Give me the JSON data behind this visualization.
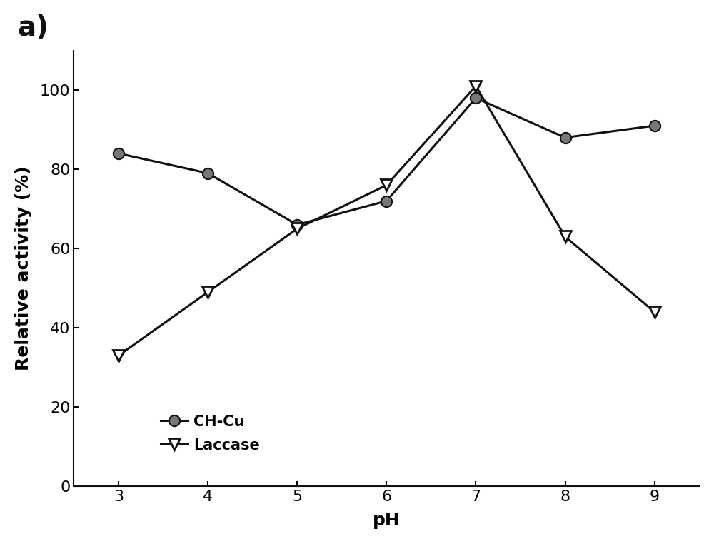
{
  "ph_values": [
    3,
    4,
    5,
    6,
    7,
    8,
    9
  ],
  "ch_cu_values": [
    84,
    79,
    66,
    72,
    98,
    88,
    91
  ],
  "laccase_values": [
    33,
    49,
    65,
    76,
    101,
    63,
    44
  ],
  "xlabel": "pH",
  "ylabel": "Relative activity (%)",
  "label_ch_cu": "CH-Cu",
  "label_laccase": "Laccase",
  "panel_label": "a)",
  "ylim": [
    0,
    110
  ],
  "xlim": [
    2.5,
    9.5
  ],
  "yticks": [
    0,
    20,
    40,
    60,
    80,
    100
  ],
  "xticks": [
    3,
    4,
    5,
    6,
    7,
    8,
    9
  ],
  "line_color": "#111111",
  "marker_ch_cu": "o",
  "marker_laccase": "v",
  "markersize_ch_cu": 11,
  "markersize_laccase": 11,
  "linewidth": 2.2,
  "background_color": "#ffffff",
  "label_fontsize": 18,
  "tick_fontsize": 16,
  "legend_fontsize": 15,
  "panel_label_fontsize": 28
}
